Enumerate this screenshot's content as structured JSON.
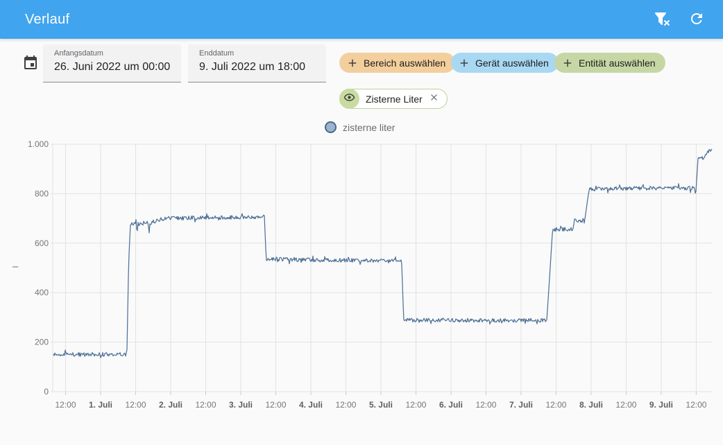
{
  "header": {
    "title": "Verlauf",
    "icons": [
      {
        "name": "filter-remove-icon"
      },
      {
        "name": "refresh-icon"
      }
    ]
  },
  "toolbar": {
    "start_field": {
      "label": "Anfangsdatum",
      "value": "26. Juni 2022 um 00:00"
    },
    "end_field": {
      "label": "Enddatum",
      "value": "9. Juli 2022 um 18:00"
    },
    "chips": [
      {
        "label": "Bereich auswählen",
        "color": "#f3cf9d"
      },
      {
        "label": "Gerät auswählen",
        "color": "#a9d8f3"
      },
      {
        "label": "Entität auswählen",
        "color": "#c6d7a5"
      }
    ],
    "entity_chip": {
      "label": "Zisterne Liter"
    }
  },
  "legend": {
    "label": "zisterne liter",
    "marker_fill": "#9db4cb",
    "marker_stroke": "#49688e"
  },
  "chart_data": {
    "type": "line",
    "title": "",
    "xlabel": "",
    "ylabel": "–",
    "grid": true,
    "legend_position": "top-center",
    "ylim": [
      0,
      1000
    ],
    "x_domain": [
      7.6,
      233.6
    ],
    "x_domain_note": "hours after 30. Juni 2022 00:00",
    "line_color": "#4e7197",
    "noise_amplitude": 8,
    "y_ticks": [
      {
        "v": 0,
        "label": "0"
      },
      {
        "v": 200,
        "label": "200"
      },
      {
        "v": 400,
        "label": "400"
      },
      {
        "v": 600,
        "label": "600"
      },
      {
        "v": 800,
        "label": "800"
      },
      {
        "v": 1000,
        "label": "1.000"
      }
    ],
    "x_ticks": [
      {
        "t": 12,
        "label": "12:00",
        "bold": false
      },
      {
        "t": 24,
        "label": "1. Juli",
        "bold": true
      },
      {
        "t": 36,
        "label": "12:00",
        "bold": false
      },
      {
        "t": 48,
        "label": "2. Juli",
        "bold": true
      },
      {
        "t": 60,
        "label": "12:00",
        "bold": false
      },
      {
        "t": 72,
        "label": "3. Juli",
        "bold": true
      },
      {
        "t": 84,
        "label": "12:00",
        "bold": false
      },
      {
        "t": 96,
        "label": "4. Juli",
        "bold": true
      },
      {
        "t": 108,
        "label": "12:00",
        "bold": false
      },
      {
        "t": 120,
        "label": "5. Juli",
        "bold": true
      },
      {
        "t": 132,
        "label": "12:00",
        "bold": false
      },
      {
        "t": 144,
        "label": "6. Juli",
        "bold": true
      },
      {
        "t": 156,
        "label": "12:00",
        "bold": false
      },
      {
        "t": 168,
        "label": "7. Juli",
        "bold": true
      },
      {
        "t": 180,
        "label": "12:00",
        "bold": false
      },
      {
        "t": 192,
        "label": "8. Juli",
        "bold": true
      },
      {
        "t": 204,
        "label": "12:00",
        "bold": false
      },
      {
        "t": 216,
        "label": "9. Juli",
        "bold": true
      },
      {
        "t": 228,
        "label": "12:00",
        "bold": false
      }
    ],
    "series": [
      {
        "name": "zisterne liter",
        "points": [
          [
            7.84,
            152
          ],
          [
            7.9,
            110
          ],
          [
            8.05,
            150
          ],
          [
            33.0,
            151
          ],
          [
            33.6,
            520
          ],
          [
            34.2,
            672
          ],
          [
            35.2,
            680
          ],
          [
            36.2,
            678
          ],
          [
            36.5,
            638
          ],
          [
            36.8,
            678
          ],
          [
            38.0,
            680
          ],
          [
            40.3,
            682
          ],
          [
            40.6,
            636
          ],
          [
            40.9,
            682
          ],
          [
            44.0,
            695
          ],
          [
            47.0,
            701
          ],
          [
            80.1,
            707
          ],
          [
            80.7,
            537
          ],
          [
            95.0,
            533
          ],
          [
            127.1,
            527
          ],
          [
            127.8,
            291
          ],
          [
            130.0,
            289
          ],
          [
            176.8,
            288
          ],
          [
            177.6,
            430
          ],
          [
            178.8,
            654
          ],
          [
            180.0,
            655
          ],
          [
            185.9,
            657
          ],
          [
            186.2,
            690
          ],
          [
            189.8,
            692
          ],
          [
            191.3,
            818
          ],
          [
            200.0,
            822
          ],
          [
            227.4,
            822
          ],
          [
            227.8,
            791
          ],
          [
            228.6,
            941
          ],
          [
            231.0,
            946
          ],
          [
            231.8,
            970
          ],
          [
            233.3,
            978
          ],
          [
            233.55,
            985
          ]
        ]
      }
    ]
  }
}
